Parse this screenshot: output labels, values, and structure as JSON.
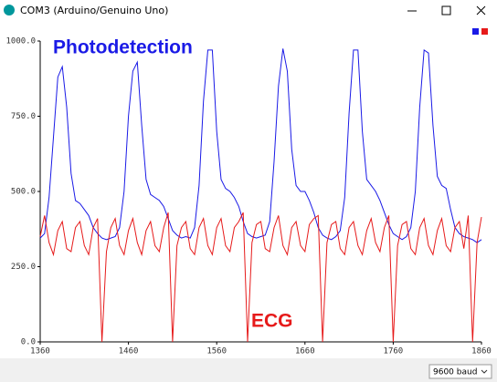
{
  "window": {
    "title": "COM3 (Arduino/Genuino Uno)",
    "baud": "9600 baud"
  },
  "chart_data": {
    "type": "line",
    "annotations": [
      {
        "text": "Photodetection",
        "color": "#1a1ae6"
      },
      {
        "text": "ECG",
        "color": "#e61a1a"
      }
    ],
    "x": [
      1360,
      1365,
      1370,
      1375,
      1380,
      1385,
      1390,
      1395,
      1400,
      1405,
      1410,
      1415,
      1420,
      1425,
      1430,
      1435,
      1440,
      1445,
      1450,
      1455,
      1460,
      1465,
      1470,
      1475,
      1480,
      1485,
      1490,
      1495,
      1500,
      1505,
      1510,
      1515,
      1520,
      1525,
      1530,
      1535,
      1540,
      1545,
      1550,
      1555,
      1560,
      1565,
      1570,
      1575,
      1580,
      1585,
      1590,
      1595,
      1600,
      1605,
      1610,
      1615,
      1620,
      1625,
      1630,
      1635,
      1640,
      1645,
      1650,
      1655,
      1660,
      1665,
      1670,
      1675,
      1680,
      1685,
      1690,
      1695,
      1700,
      1705,
      1710,
      1715,
      1720,
      1725,
      1730,
      1735,
      1740,
      1745,
      1750,
      1755,
      1760,
      1765,
      1770,
      1775,
      1780,
      1785,
      1790,
      1795,
      1800,
      1805,
      1810,
      1815,
      1820,
      1825,
      1830,
      1835,
      1840,
      1845,
      1850,
      1855,
      1860
    ],
    "series": [
      {
        "color": "#1a1ae6",
        "values": [
          345,
          360,
          480,
          680,
          880,
          915,
          780,
          560,
          470,
          460,
          440,
          420,
          380,
          360,
          345,
          340,
          345,
          350,
          380,
          500,
          750,
          900,
          930,
          720,
          540,
          490,
          480,
          470,
          450,
          410,
          370,
          355,
          345,
          350,
          345,
          380,
          520,
          800,
          970,
          970,
          700,
          540,
          510,
          500,
          480,
          450,
          400,
          360,
          350,
          345,
          350,
          355,
          400,
          600,
          850,
          975,
          900,
          640,
          520,
          500,
          500,
          470,
          430,
          380,
          355,
          345,
          340,
          350,
          370,
          480,
          760,
          970,
          970,
          700,
          540,
          520,
          500,
          470,
          430,
          390,
          360,
          350,
          340,
          350,
          380,
          500,
          780,
          970,
          960,
          720,
          550,
          520,
          510,
          440,
          380,
          360,
          350,
          345,
          340,
          330,
          340
        ]
      },
      {
        "color": "#e61a1a",
        "values": [
          350,
          420,
          330,
          290,
          370,
          400,
          310,
          300,
          380,
          400,
          320,
          290,
          380,
          410,
          0,
          300,
          380,
          410,
          320,
          290,
          370,
          410,
          330,
          290,
          370,
          400,
          320,
          300,
          380,
          430,
          0,
          320,
          380,
          400,
          310,
          290,
          380,
          410,
          320,
          290,
          380,
          410,
          320,
          300,
          380,
          400,
          430,
          0,
          330,
          390,
          400,
          310,
          300,
          380,
          420,
          320,
          290,
          380,
          400,
          320,
          300,
          390,
          410,
          420,
          0,
          330,
          390,
          400,
          310,
          290,
          380,
          400,
          320,
          290,
          370,
          410,
          330,
          300,
          380,
          420,
          0,
          320,
          390,
          400,
          310,
          290,
          380,
          410,
          320,
          290,
          370,
          410,
          320,
          300,
          380,
          400,
          310,
          420,
          0,
          330,
          415
        ]
      }
    ],
    "xlim": [
      1360,
      1860
    ],
    "xticks": [
      1360,
      1460,
      1560,
      1660,
      1760,
      1860
    ],
    "ylim": [
      0,
      1000
    ],
    "yticks": [
      {
        "value": 0,
        "label": "0.0"
      },
      {
        "value": 250,
        "label": "250.0"
      },
      {
        "value": 500,
        "label": "500.0"
      },
      {
        "value": 750,
        "label": "750.0"
      },
      {
        "value": 1000,
        "label": "1000.0"
      }
    ],
    "grid": false
  }
}
